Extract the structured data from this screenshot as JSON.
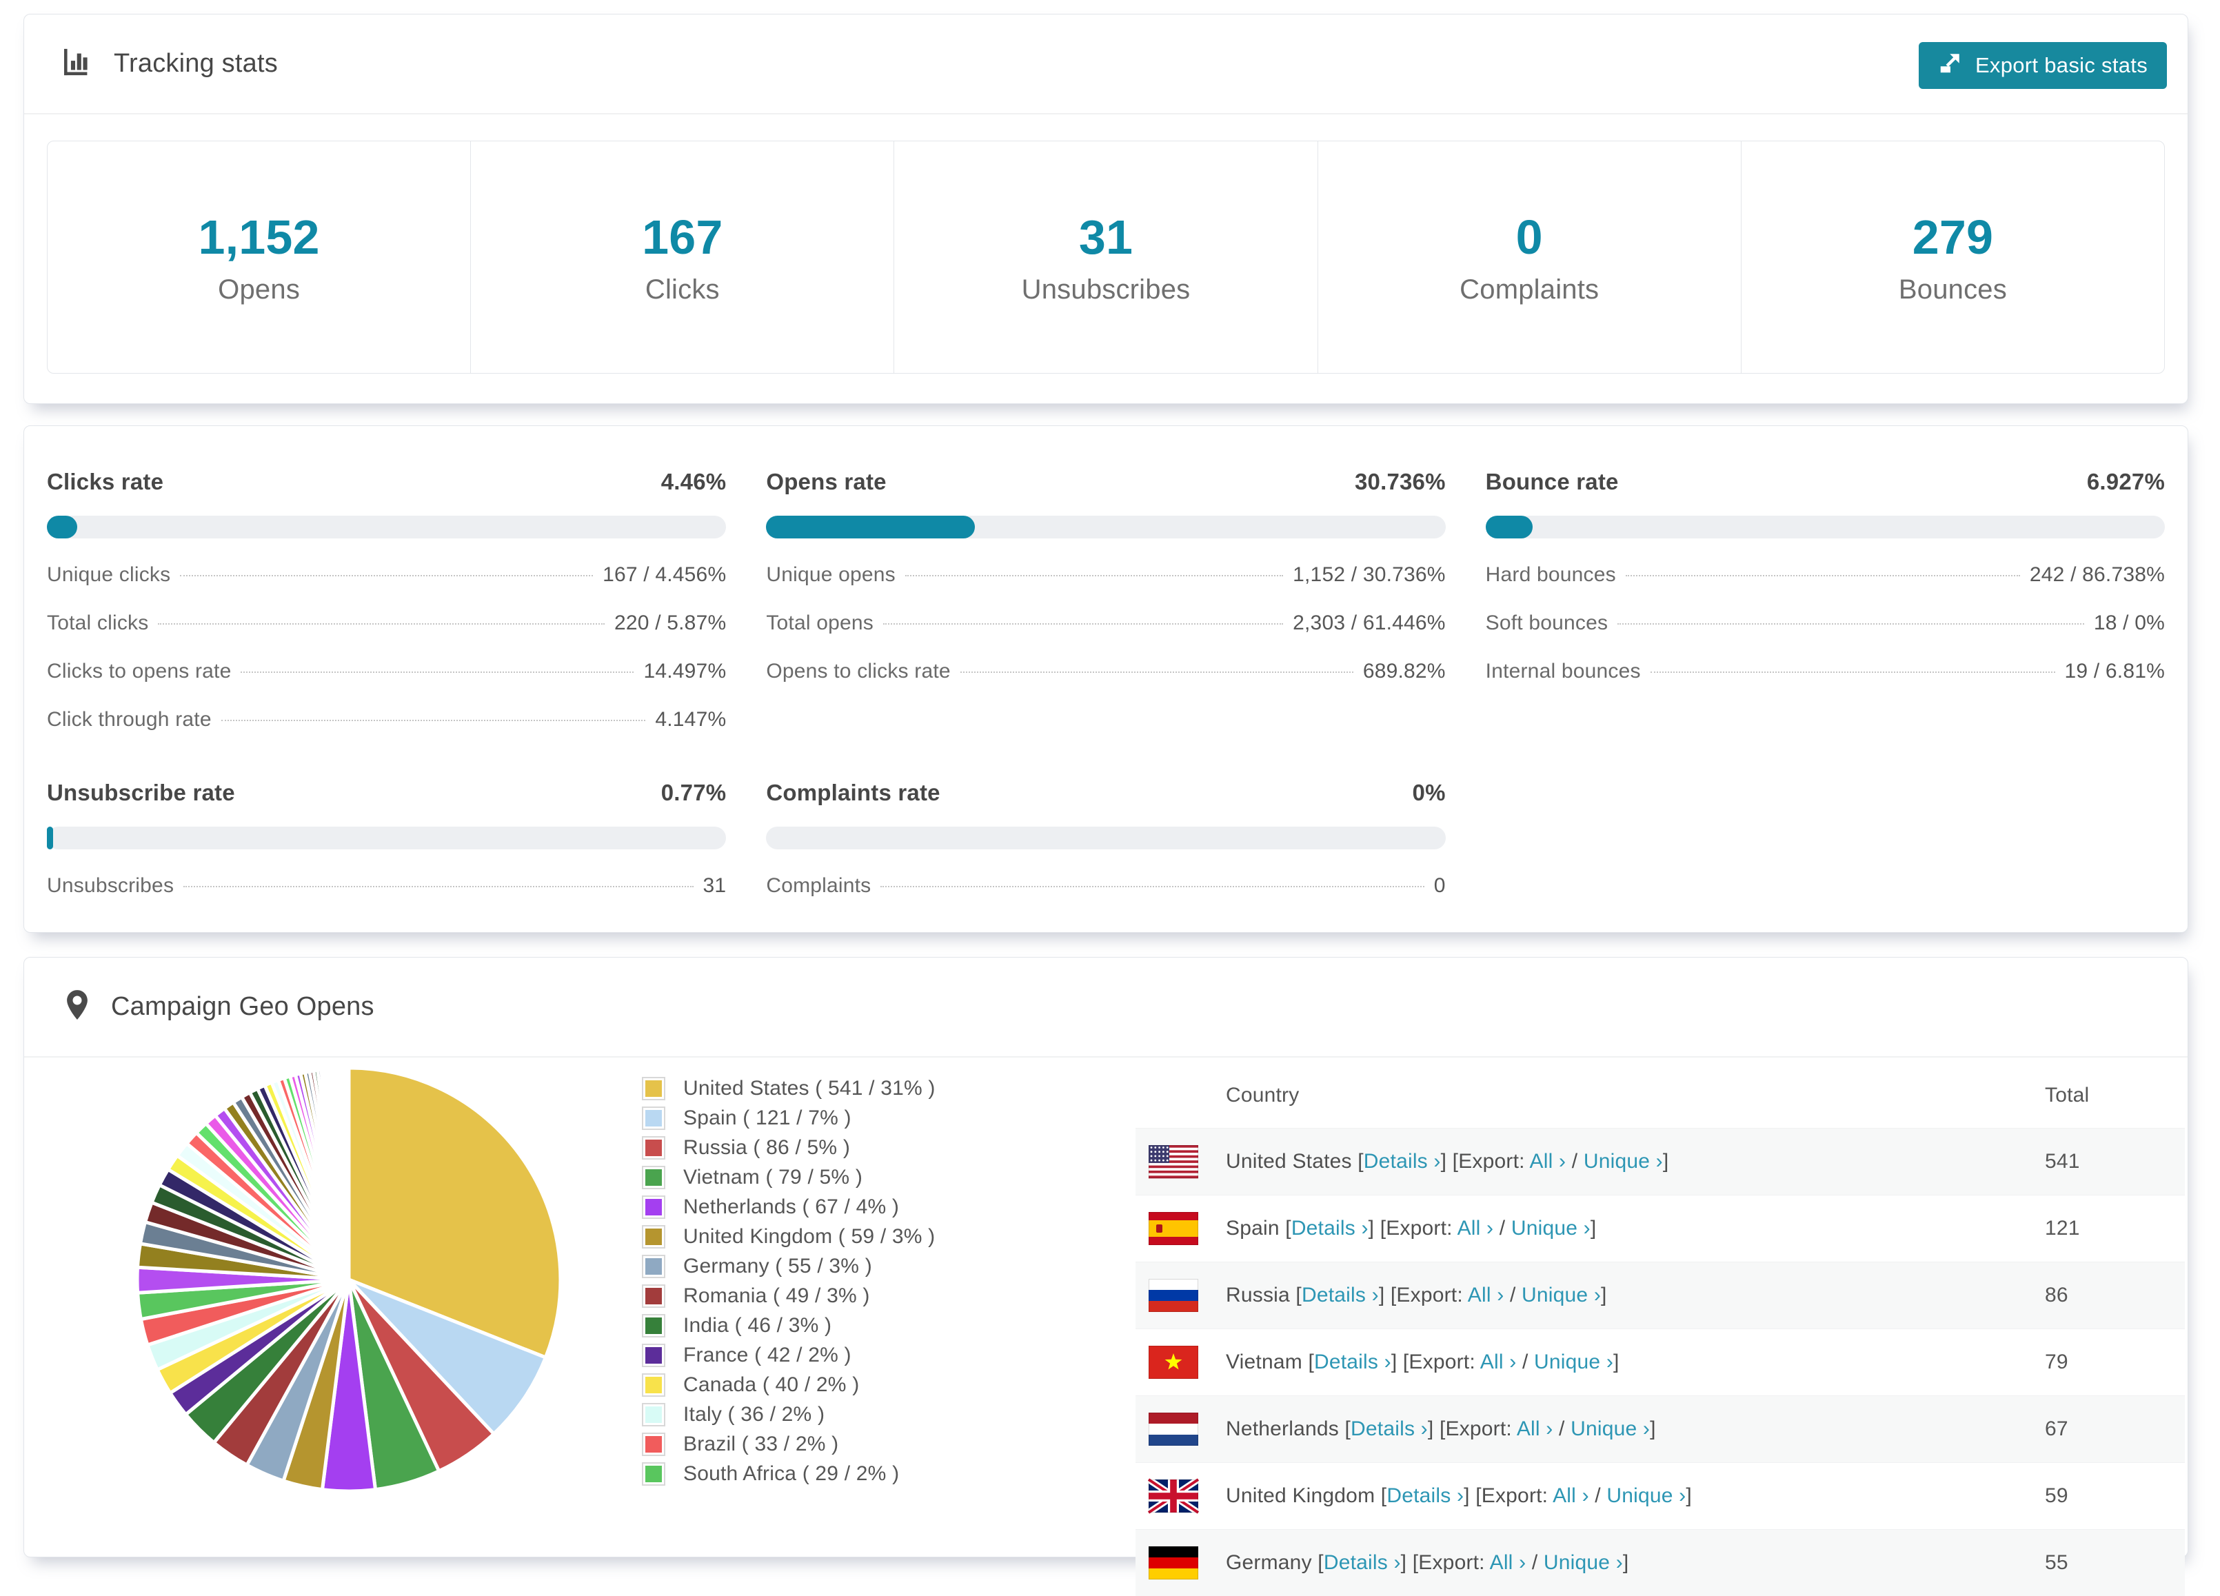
{
  "colors": {
    "accent": "#0f89a6",
    "button": "#17899e",
    "link": "#2d96b4",
    "bar_track": "#edeff2",
    "row_alt": "#f7f8f8"
  },
  "tracking": {
    "title": "Tracking stats",
    "export_button": "Export basic stats",
    "stats": [
      {
        "value": "1,152",
        "label": "Opens"
      },
      {
        "value": "167",
        "label": "Clicks"
      },
      {
        "value": "31",
        "label": "Unsubscribes"
      },
      {
        "value": "0",
        "label": "Complaints"
      },
      {
        "value": "279",
        "label": "Bounces"
      }
    ]
  },
  "rates": [
    {
      "title": "Clicks rate",
      "value": "4.46%",
      "percent": 4.46,
      "rows": [
        {
          "label": "Unique clicks",
          "value": "167 / 4.456%"
        },
        {
          "label": "Total clicks",
          "value": "220 / 5.87%"
        },
        {
          "label": "Clicks to opens rate",
          "value": "14.497%"
        },
        {
          "label": "Click through rate",
          "value": "4.147%"
        }
      ]
    },
    {
      "title": "Opens rate",
      "value": "30.736%",
      "percent": 30.736,
      "rows": [
        {
          "label": "Unique opens",
          "value": "1,152 / 30.736%"
        },
        {
          "label": "Total opens",
          "value": "2,303 / 61.446%"
        },
        {
          "label": "Opens to clicks rate",
          "value": "689.82%"
        }
      ]
    },
    {
      "title": "Bounce rate",
      "value": "6.927%",
      "percent": 6.927,
      "rows": [
        {
          "label": "Hard bounces",
          "value": "242 / 86.738%"
        },
        {
          "label": "Soft bounces",
          "value": "18 / 0%"
        },
        {
          "label": "Internal bounces",
          "value": "19 / 6.81%"
        }
      ]
    },
    {
      "title": "Unsubscribe rate",
      "value": "0.77%",
      "percent": 0.77,
      "rows": [
        {
          "label": "Unsubscribes",
          "value": "31"
        }
      ]
    },
    {
      "title": "Complaints rate",
      "value": "0%",
      "percent": 0,
      "rows": [
        {
          "label": "Complaints",
          "value": "0"
        }
      ]
    }
  ],
  "geo": {
    "title": "Campaign Geo Opens",
    "table": {
      "col_country": "Country",
      "col_total": "Total",
      "details": "Details ›",
      "export_prefix": "Export:",
      "all": "All ›",
      "unique": "Unique ›",
      "rows": [
        {
          "country": "United States",
          "flag": "us",
          "total": "541"
        },
        {
          "country": "Spain",
          "flag": "es",
          "total": "121"
        },
        {
          "country": "Russia",
          "flag": "ru",
          "total": "86"
        },
        {
          "country": "Vietnam",
          "flag": "vn",
          "total": "79"
        },
        {
          "country": "Netherlands",
          "flag": "nl",
          "total": "67"
        },
        {
          "country": "United Kingdom",
          "flag": "gb",
          "total": "59"
        },
        {
          "country": "Germany",
          "flag": "de",
          "total": "55"
        }
      ]
    }
  },
  "chart_data": {
    "type": "pie",
    "title": "Campaign Geo Opens",
    "unit": "opens",
    "legend_position": "right",
    "legend_format": "{label} ( {value} / {pct}% )",
    "slices": [
      {
        "label": "United States",
        "value": 541,
        "pct": 31,
        "color": "#e5c24a"
      },
      {
        "label": "Spain",
        "value": 121,
        "pct": 7,
        "color": "#b9d8f2"
      },
      {
        "label": "Russia",
        "value": 86,
        "pct": 5,
        "color": "#c84d4d"
      },
      {
        "label": "Vietnam",
        "value": 79,
        "pct": 5,
        "color": "#4aa44e"
      },
      {
        "label": "Netherlands",
        "value": 67,
        "pct": 4,
        "color": "#a43ff0"
      },
      {
        "label": "United Kingdom",
        "value": 59,
        "pct": 3,
        "color": "#b5952f"
      },
      {
        "label": "Germany",
        "value": 55,
        "pct": 3,
        "color": "#8fa9c2"
      },
      {
        "label": "Romania",
        "value": 49,
        "pct": 3,
        "color": "#a23c3c"
      },
      {
        "label": "India",
        "value": 46,
        "pct": 3,
        "color": "#36803a"
      },
      {
        "label": "France",
        "value": 42,
        "pct": 2,
        "color": "#5c2d9a"
      },
      {
        "label": "Canada",
        "value": 40,
        "pct": 2,
        "color": "#f8e24b"
      },
      {
        "label": "Italy",
        "value": 36,
        "pct": 2,
        "color": "#d8fbf6"
      },
      {
        "label": "Brazil",
        "value": 33,
        "pct": 2,
        "color": "#f15c5c"
      },
      {
        "label": "South Africa",
        "value": 29,
        "pct": 2,
        "color": "#59c65e"
      }
    ],
    "others_pct": 26,
    "tail_slice_count": 40,
    "tail_decay": 0.93,
    "tail_palette": [
      "#b44ef0",
      "#93801f",
      "#6b7f93",
      "#742a2a",
      "#2a5c2e",
      "#332868",
      "#f6f24c",
      "#ebfefd",
      "#fa6666",
      "#63e06c",
      "#ea5ae8"
    ]
  }
}
